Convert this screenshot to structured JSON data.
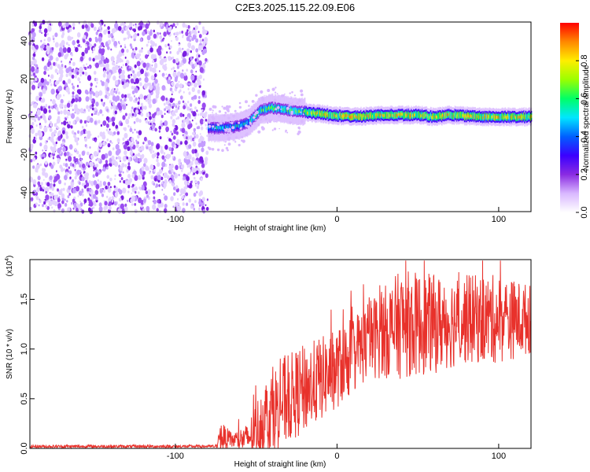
{
  "title": "C2E3.2025.115.22.09.E06",
  "colors": {
    "snr_line": "#e8312b",
    "axis": "#000000",
    "colormap": [
      "#ffffff",
      "#d9b8ff",
      "#8a2be2",
      "#3b00ff",
      "#0060ff",
      "#00e6ff",
      "#00ff66",
      "#9aff00",
      "#ffee00",
      "#ff8800",
      "#ff0000"
    ]
  },
  "chart_data": [
    {
      "type": "heatmap",
      "xlabel": "Height of straight line (km)",
      "ylabel": "Frequency (Hz)",
      "xlim": [
        -190,
        120
      ],
      "ylim": [
        -50,
        50
      ],
      "x_ticks": [
        {
          "value": -100,
          "label": "-100"
        },
        {
          "value": 0,
          "label": "0"
        },
        {
          "value": 100,
          "label": "100"
        }
      ],
      "y_ticks": [
        {
          "value": -40,
          "label": "-40"
        },
        {
          "value": -20,
          "label": "-20"
        },
        {
          "value": 0,
          "label": "0"
        },
        {
          "value": 20,
          "label": "20"
        },
        {
          "value": 40,
          "label": "40"
        }
      ],
      "noise_region_x": [
        -190,
        -80
      ],
      "ridge": [
        {
          "x": -80,
          "y": -6
        },
        {
          "x": -70,
          "y": -6
        },
        {
          "x": -62,
          "y": -5
        },
        {
          "x": -55,
          "y": -3
        },
        {
          "x": -48,
          "y": 3
        },
        {
          "x": -42,
          "y": 5
        },
        {
          "x": -35,
          "y": 4
        },
        {
          "x": -25,
          "y": 3
        },
        {
          "x": -15,
          "y": 2
        },
        {
          "x": -5,
          "y": 1
        },
        {
          "x": 10,
          "y": 0
        },
        {
          "x": 30,
          "y": 1
        },
        {
          "x": 50,
          "y": 1
        },
        {
          "x": 60,
          "y": 0
        },
        {
          "x": 70,
          "y": 1
        },
        {
          "x": 90,
          "y": 0
        },
        {
          "x": 120,
          "y": 0
        }
      ],
      "colorbar": {
        "label": "Normalized spectral amplitude",
        "range": [
          0,
          1
        ],
        "ticks": [
          {
            "value": 0.0,
            "label": "0.0"
          },
          {
            "value": 0.2,
            "label": "0.2"
          },
          {
            "value": 0.4,
            "label": "0.4"
          },
          {
            "value": 0.6,
            "label": "0.6"
          },
          {
            "value": 0.8,
            "label": "0.8"
          }
        ]
      }
    },
    {
      "type": "line",
      "xlabel": "Height of straight line (km)",
      "ylabel": "SNR (10 * v/v)",
      "y_multiplier_label": "(x10",
      "y_multiplier_exp": "4",
      "y_multiplier_close": ")",
      "xlim": [
        -190,
        120
      ],
      "ylim": [
        0,
        1.9
      ],
      "x_ticks": [
        {
          "value": -100,
          "label": "-100"
        },
        {
          "value": 0,
          "label": "0"
        },
        {
          "value": 100,
          "label": "100"
        }
      ],
      "y_ticks": [
        {
          "value": 0.0,
          "label": "0.0"
        },
        {
          "value": 0.5,
          "label": "0.5"
        },
        {
          "value": 1.0,
          "label": "1.0"
        },
        {
          "value": 1.5,
          "label": "1.5"
        }
      ],
      "envelope": [
        {
          "x": -190,
          "base": 0.02,
          "amp": 0.015
        },
        {
          "x": -75,
          "base": 0.02,
          "amp": 0.015
        },
        {
          "x": -72,
          "base": 0.12,
          "amp": 0.15
        },
        {
          "x": -65,
          "base": 0.08,
          "amp": 0.08
        },
        {
          "x": -55,
          "base": 0.1,
          "amp": 0.15
        },
        {
          "x": -45,
          "base": 0.3,
          "amp": 0.4
        },
        {
          "x": -35,
          "base": 0.45,
          "amp": 0.45
        },
        {
          "x": -20,
          "base": 0.6,
          "amp": 0.45
        },
        {
          "x": 0,
          "base": 0.8,
          "amp": 0.4
        },
        {
          "x": 20,
          "base": 1.1,
          "amp": 0.4
        },
        {
          "x": 40,
          "base": 1.25,
          "amp": 0.55
        },
        {
          "x": 60,
          "base": 1.25,
          "amp": 0.5
        },
        {
          "x": 80,
          "base": 1.3,
          "amp": 0.45
        },
        {
          "x": 100,
          "base": 1.3,
          "amp": 0.45
        },
        {
          "x": 120,
          "base": 1.3,
          "amp": 0.35
        }
      ]
    }
  ]
}
